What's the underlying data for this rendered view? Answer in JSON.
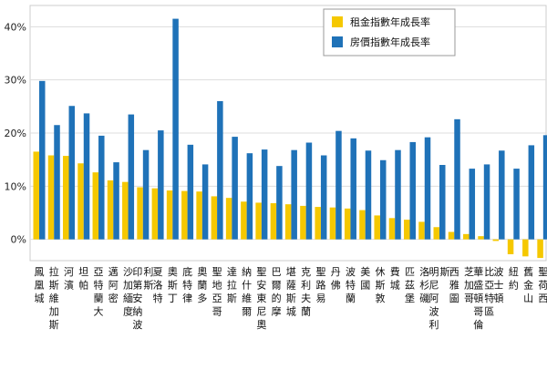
{
  "chart_data": {
    "type": "bar",
    "categories": [
      "鳳凰城",
      "拉斯維加斯",
      "河濱",
      "坦帕",
      "亞特蘭大",
      "邁阿密",
      "沙加緬度",
      "印第安納波利斯",
      "夏洛特",
      "奧斯丁",
      "底特律",
      "奧蘭多",
      "聖地亞哥",
      "達拉斯",
      "納什維爾",
      "聖安東尼奧",
      "巴爾的摩",
      "堪薩斯城",
      "克利夫蘭",
      "聖路易",
      "丹佛",
      "波特蘭",
      "美國",
      "休斯敦",
      "費城",
      "匹茲堡",
      "洛杉磯",
      "明尼阿波利斯",
      "西雅圖",
      "芝加哥",
      "華盛頓哥倫比亞特區",
      "波士頓",
      "紐約",
      "舊金山",
      "聖荷西"
    ],
    "series": [
      {
        "name": "租金指數年成長率",
        "color": "#f5c800",
        "values": [
          16.5,
          15.8,
          15.7,
          14.3,
          12.6,
          11.1,
          10.8,
          9.8,
          9.6,
          9.2,
          9.1,
          9.0,
          8.1,
          7.8,
          7.1,
          6.9,
          6.8,
          6.6,
          6.3,
          6.1,
          6.0,
          5.8,
          5.5,
          4.5,
          4.0,
          3.7,
          3.3,
          2.3,
          1.4,
          1.0,
          0.6,
          -0.3,
          -2.8,
          -3.2,
          -3.5
        ]
      },
      {
        "name": "房價指數年成長率",
        "color": "#1f72b8",
        "values": [
          29.8,
          21.5,
          25.1,
          23.7,
          19.5,
          14.5,
          23.5,
          16.8,
          20.5,
          41.5,
          17.8,
          14.1,
          26.0,
          19.3,
          16.2,
          16.9,
          13.8,
          16.8,
          18.2,
          15.8,
          20.4,
          19.0,
          16.7,
          14.9,
          16.8,
          18.3,
          19.2,
          14.0,
          22.6,
          13.3,
          14.1,
          16.7,
          13.3,
          17.7,
          19.6
        ]
      }
    ],
    "yticks": [
      "0%",
      "10%",
      "20%",
      "30%",
      "40%"
    ],
    "ylim": [
      -4,
      44
    ],
    "grid": true,
    "legend_position": "top-right"
  }
}
